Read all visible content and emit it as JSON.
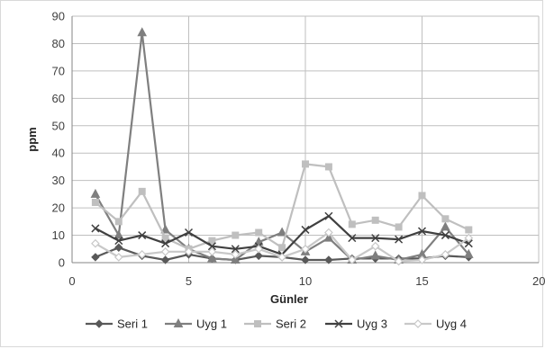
{
  "chart_data": {
    "type": "line",
    "title": "",
    "xlabel": "Günler",
    "ylabel": "ppm",
    "xlim": [
      0,
      20
    ],
    "ylim": [
      0,
      90
    ],
    "xticks": [
      0,
      5,
      10,
      15,
      20
    ],
    "yticks": [
      0,
      10,
      20,
      30,
      40,
      50,
      60,
      70,
      80,
      90
    ],
    "grid": "vertical and horizontal major gridlines",
    "legend_position": "bottom",
    "x": [
      1,
      2,
      3,
      4,
      5,
      6,
      7,
      8,
      9,
      10,
      11,
      12,
      13,
      14,
      15,
      16,
      17
    ],
    "series": [
      {
        "name": "Seri 1",
        "marker": "diamond",
        "color": "#595959",
        "values": [
          2,
          5.5,
          2.5,
          1,
          3,
          1.5,
          1,
          2.5,
          2,
          1,
          1,
          1.5,
          1.5,
          1.5,
          1.5,
          2.5,
          2
        ]
      },
      {
        "name": "Uyg 1",
        "marker": "triangle",
        "color": "#7f7f7f",
        "values": [
          25,
          10,
          84,
          12,
          5,
          1.5,
          1,
          7.5,
          11,
          4,
          9,
          1,
          2.5,
          1,
          3,
          13,
          3
        ]
      },
      {
        "name": "Seri 2",
        "marker": "square",
        "color": "#bfbfbf",
        "values": [
          22,
          15,
          26,
          9,
          5,
          8,
          10,
          11,
          5.5,
          36,
          35,
          14,
          15.5,
          13,
          24.5,
          16,
          12
        ]
      },
      {
        "name": "Uyg 3",
        "marker": "x",
        "color": "#404040",
        "values": [
          12.5,
          8,
          10,
          7,
          11,
          6,
          5,
          6,
          3,
          12,
          17,
          9,
          9,
          8.5,
          11.5,
          10,
          7
        ]
      },
      {
        "name": "Uyg 4",
        "marker": "diamond-open",
        "color": "#c8c8c8",
        "values": [
          7,
          2,
          3,
          4,
          4,
          4,
          3,
          5,
          2,
          5,
          11,
          1,
          6,
          0.5,
          1,
          3,
          9
        ]
      }
    ]
  }
}
